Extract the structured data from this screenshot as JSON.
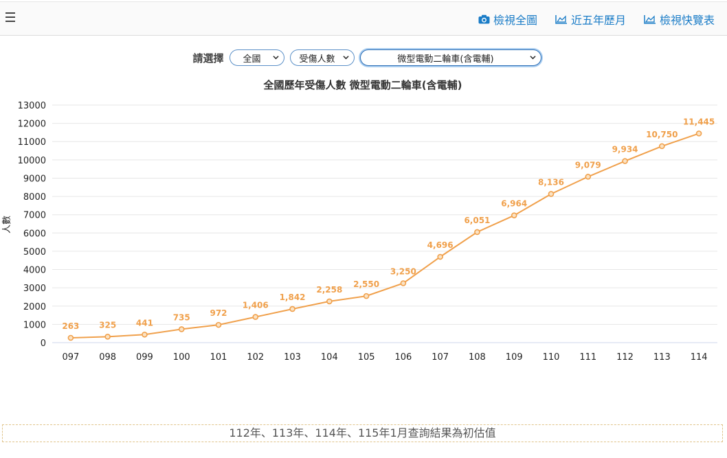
{
  "nav": {
    "items": [
      {
        "label": "檢視全圖",
        "icon": "camera-icon"
      },
      {
        "label": "近五年歷月",
        "icon": "area-chart-icon"
      },
      {
        "label": "檢視快覽表",
        "icon": "area-chart-icon"
      }
    ]
  },
  "controls": {
    "prompt": "請選擇",
    "region": "全國",
    "metric": "受傷人數",
    "vehicle": "微型電動二輪車(含電輔)"
  },
  "chart_data": {
    "type": "line",
    "title": "全國歷年受傷人數 微型電動二輪車(含電輔)",
    "xlabel": "",
    "ylabel": "人數",
    "categories": [
      "097",
      "098",
      "099",
      "100",
      "101",
      "102",
      "103",
      "104",
      "105",
      "106",
      "107",
      "108",
      "109",
      "110",
      "111",
      "112",
      "113",
      "114"
    ],
    "values": [
      263,
      325,
      441,
      735,
      972,
      1406,
      1842,
      2258,
      2550,
      3250,
      4696,
      6051,
      6964,
      8136,
      9079,
      9934,
      10750,
      11445
    ],
    "value_labels": [
      "263",
      "325",
      "441",
      "735",
      "972",
      "1,406",
      "1,842",
      "2,258",
      "2,550",
      "3,250",
      "4,696",
      "6,051",
      "6,964",
      "8,136",
      "9,079",
      "9,934",
      "10,750",
      "11,445"
    ],
    "ylim": [
      0,
      13000
    ],
    "yticks": [
      "0",
      "1000",
      "2000",
      "3000",
      "4000",
      "5000",
      "6000",
      "7000",
      "8000",
      "9000",
      "10000",
      "11000",
      "12000",
      "13000"
    ],
    "grid": true,
    "color": "#f0a04b"
  },
  "footer": {
    "note": "112年、113年、114年、115年1月查詢結果為初估值"
  }
}
